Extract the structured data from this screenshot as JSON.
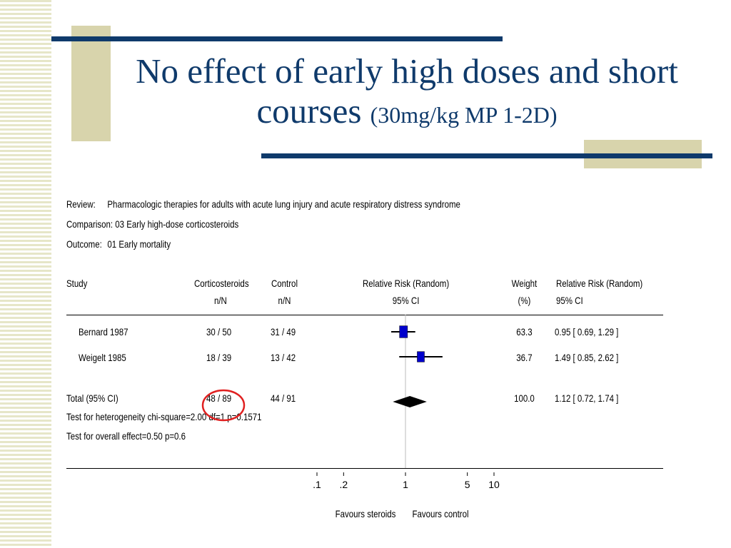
{
  "slide": {
    "title_main": "No effect of early high doses and short courses",
    "title_sub": "(30mg/kg MP 1-2D)"
  },
  "meta": {
    "review_label": "Review:",
    "review_value": "Pharmacologic therapies for adults with acute lung injury and acute respiratory distress syndrome",
    "comparison_label": "Comparison:",
    "comparison_value": "03 Early high-dose corticosteroids",
    "outcome_label": "Outcome:",
    "outcome_value": "01 Early mortality"
  },
  "headers": {
    "study": "Study",
    "cortico_1": "Corticosteroids",
    "cortico_2": "n/N",
    "control_1": "Control",
    "control_2": "n/N",
    "rr_1": "Relative Risk (Random)",
    "rr_2": "95% CI",
    "weight_1": "Weight",
    "weight_2": "(%)",
    "rrci_1": "Relative Risk (Random)",
    "rrci_2": "95% CI"
  },
  "rows": [
    {
      "study": "Bernard 1987",
      "cortico": "30 / 50",
      "control": "31 / 49",
      "weight": "63.3",
      "ci": "0.95 [ 0.69, 1.29 ]"
    },
    {
      "study": "Weigelt 1985",
      "cortico": "18 / 39",
      "control": "13 / 42",
      "weight": "36.7",
      "ci": "1.49 [ 0.85, 2.62 ]"
    }
  ],
  "total": {
    "study": "Total (95% CI)",
    "cortico": "48 / 89",
    "control": "44 / 91",
    "weight": "100.0",
    "ci": "1.12 [ 0.72, 1.74 ]"
  },
  "tests": {
    "heterogeneity": "Test for heterogeneity chi-square=2.00 df=1 p=0.1571",
    "overall": "Test for overall effect=0.50 p=0.6"
  },
  "annotation_color": "#e02020",
  "marker_color": "#0000cc",
  "chart_data": {
    "type": "scatter",
    "x_scale": "log",
    "xlim": [
      0.1,
      10
    ],
    "x_ticks": [
      ".1",
      ".2",
      "1",
      "5",
      "10"
    ],
    "x_tick_values": [
      0.1,
      0.2,
      1,
      5,
      10
    ],
    "xlabel_left": "Favours steroids",
    "xlabel_right": "Favours control",
    "reference_line": 1,
    "studies": [
      {
        "name": "Bernard 1987",
        "rr": 0.95,
        "lower": 0.69,
        "upper": 1.29,
        "weight": 63.3
      },
      {
        "name": "Weigelt 1985",
        "rr": 1.49,
        "lower": 0.85,
        "upper": 2.62,
        "weight": 36.7
      }
    ],
    "pooled": {
      "name": "Total (95% CI)",
      "rr": 1.12,
      "lower": 0.72,
      "upper": 1.74
    }
  }
}
